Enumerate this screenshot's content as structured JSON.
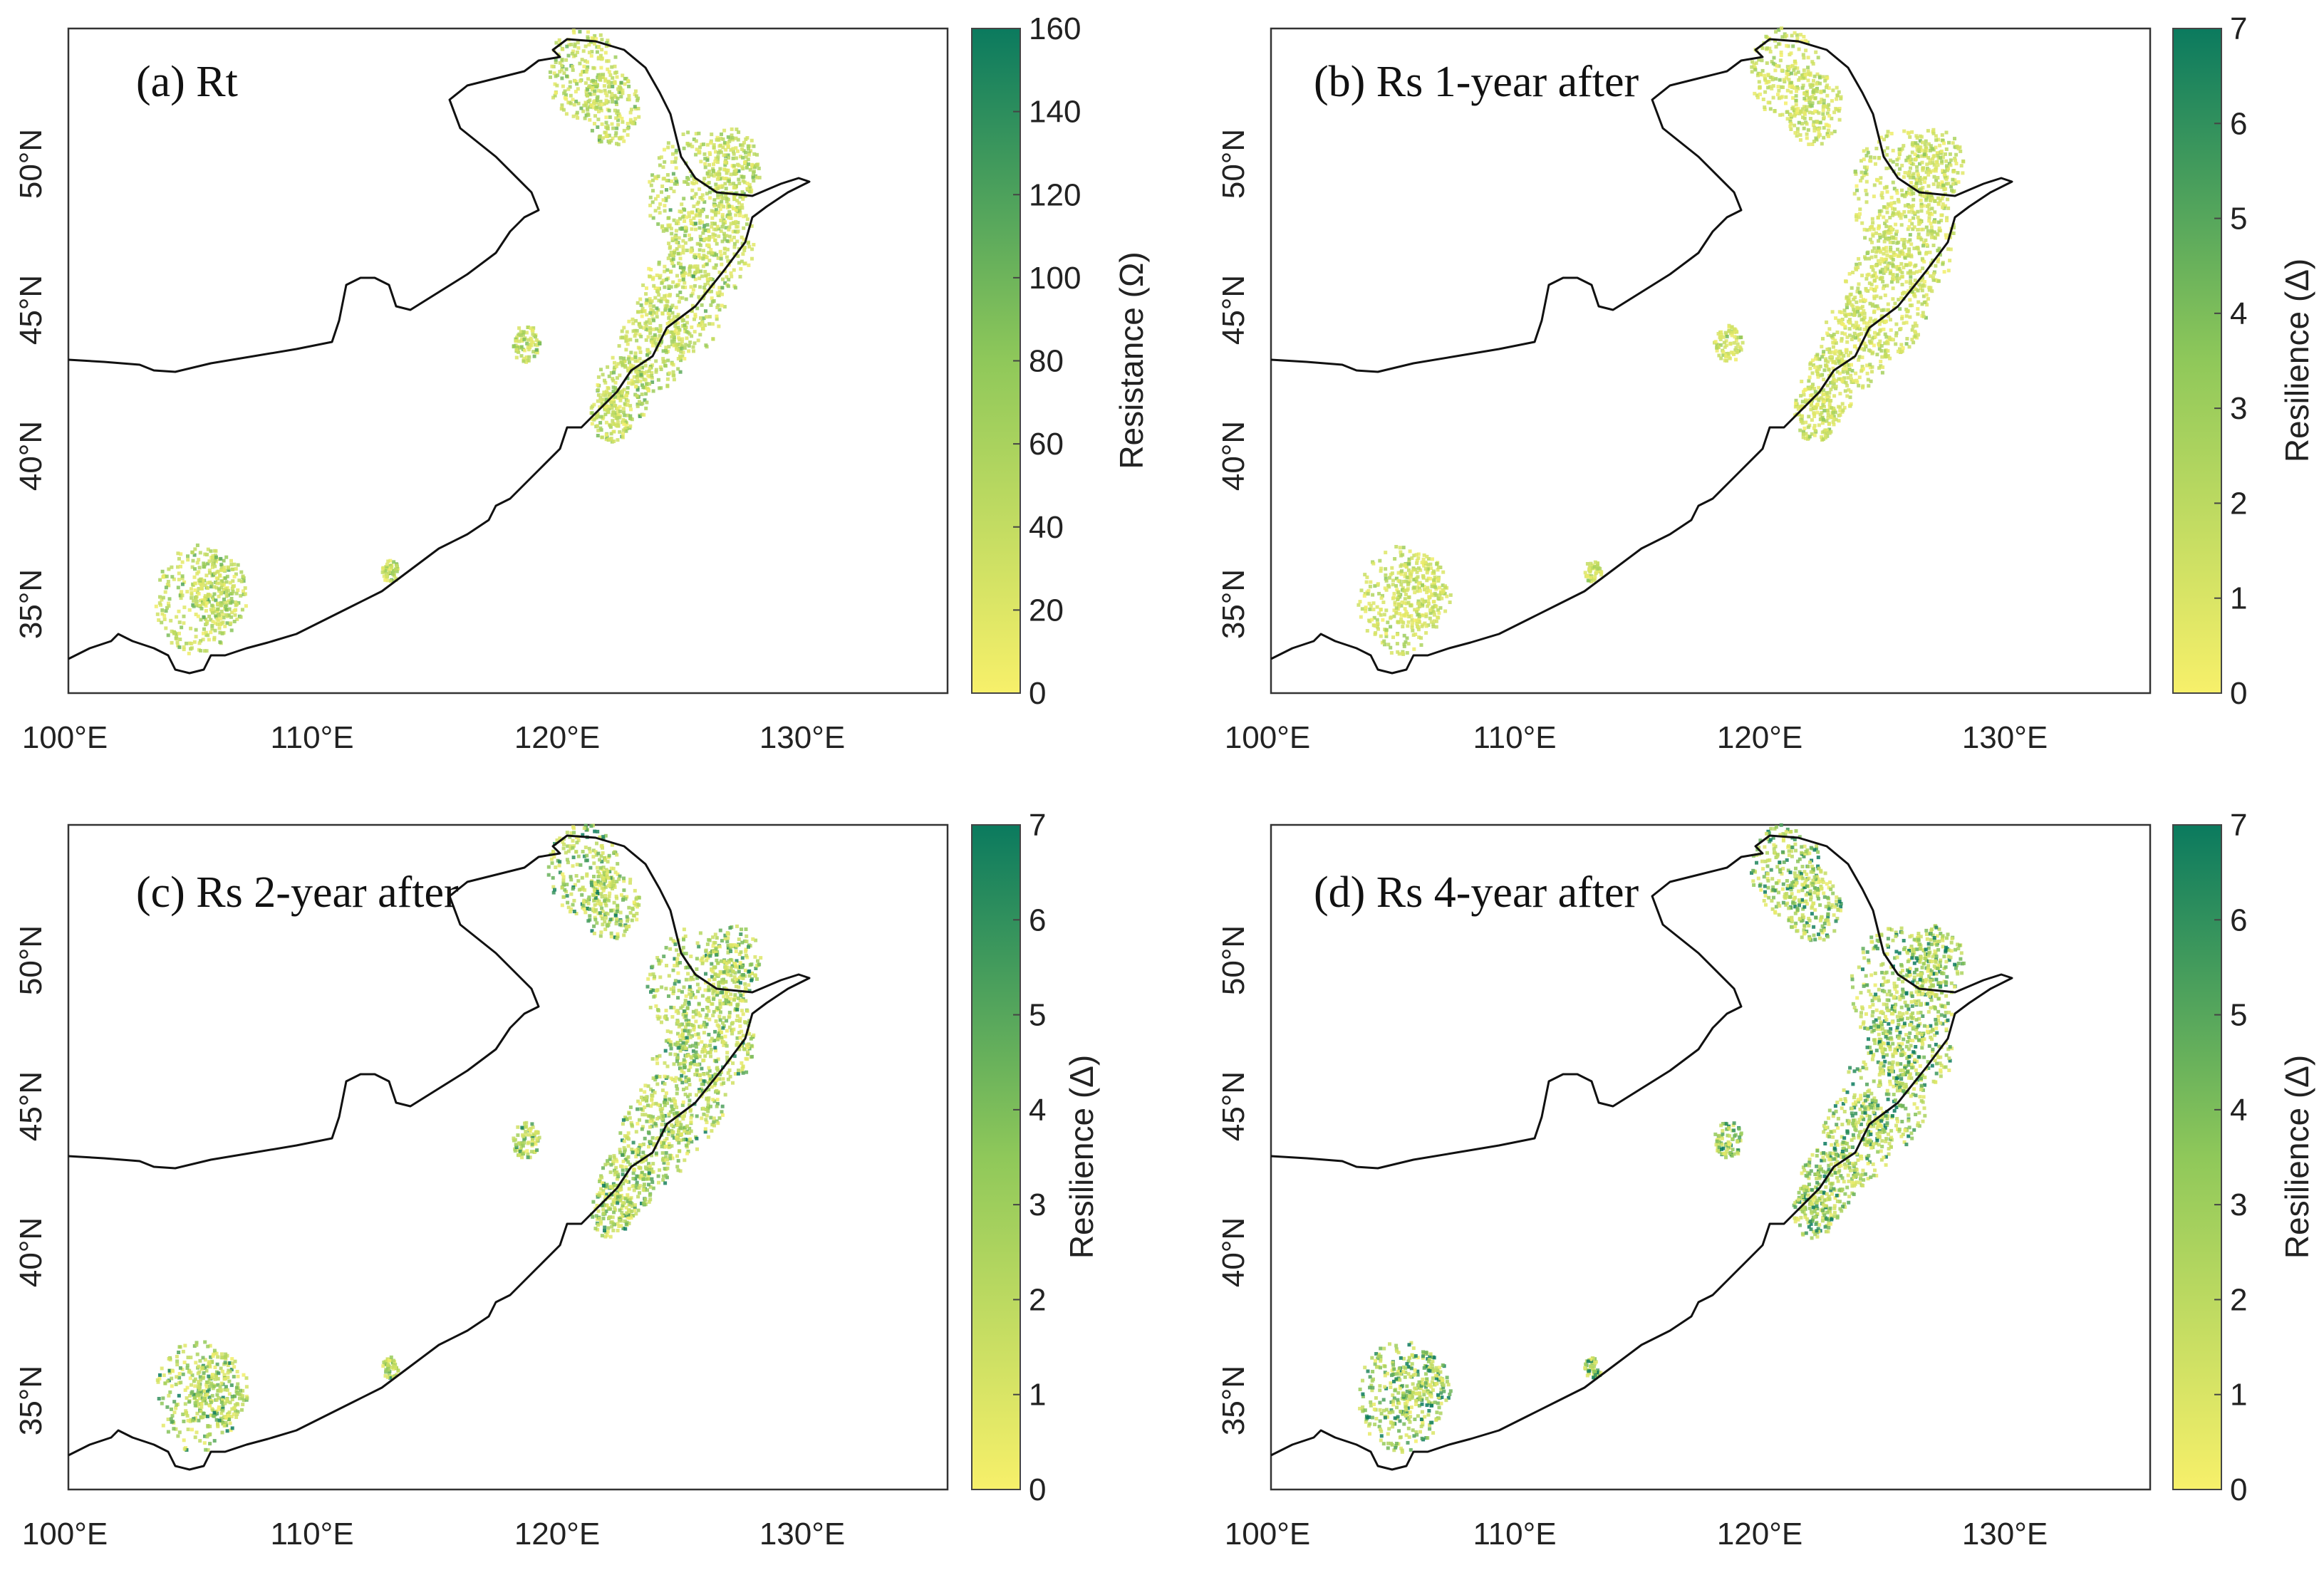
{
  "axes": {
    "lon_ticks": [
      "100°E",
      "110°E",
      "120°E",
      "130°E"
    ],
    "lat_ticks": [
      "35°N",
      "40°N",
      "45°N",
      "50°N"
    ]
  },
  "panels": [
    {
      "title": "(a) Rt",
      "colorbar_label": "Resistance (Ω)",
      "colorbar_ticks": [
        "0",
        "20",
        "40",
        "60",
        "80",
        "100",
        "120",
        "140",
        "160"
      ],
      "intensity": 0.35
    },
    {
      "title": "(b) Rs 1-year after",
      "colorbar_label": "Resilience (Δ)",
      "colorbar_ticks": [
        "0",
        "1",
        "2",
        "3",
        "4",
        "5",
        "6",
        "7"
      ],
      "intensity": 0.25
    },
    {
      "title": "(c) Rs 2-year after",
      "colorbar_label": "Resilience (Δ)",
      "colorbar_ticks": [
        "0",
        "1",
        "2",
        "3",
        "4",
        "5",
        "6",
        "7"
      ],
      "intensity": 0.55
    },
    {
      "title": "(d) Rs 4-year after",
      "colorbar_label": "Resilience (Δ)",
      "colorbar_ticks": [
        "0",
        "1",
        "2",
        "3",
        "4",
        "5",
        "6",
        "7"
      ],
      "intensity": 0.7
    }
  ],
  "colors": {
    "cmap_low": "#f7f06a",
    "cmap_mid": "#8fc85a",
    "cmap_high": "#0b7a5e",
    "border": "#111111"
  }
}
